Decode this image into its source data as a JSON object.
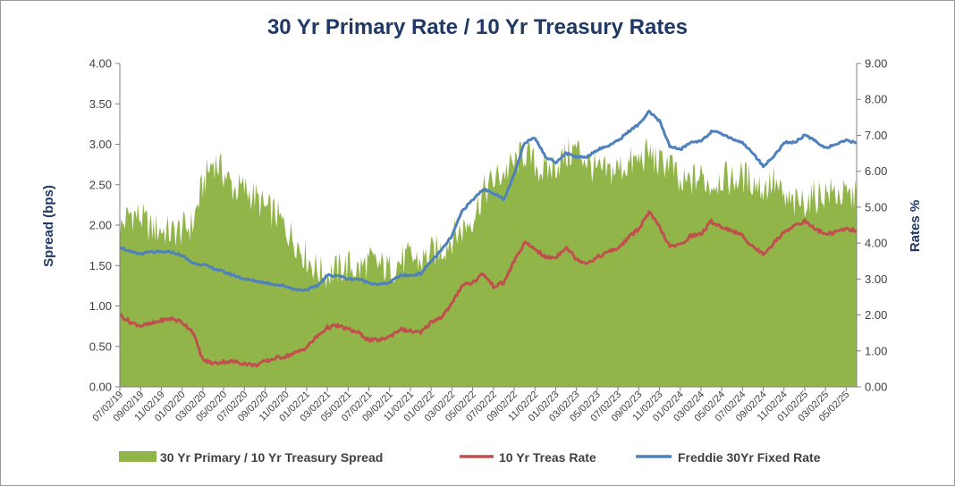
{
  "chart_data": {
    "type": "line",
    "title": "30 Yr Primary Rate / 10 Yr Treasury Rates",
    "ylabel_left": "Spread (bps)",
    "ylabel_right": "Rates %",
    "ylim_left": [
      0,
      4
    ],
    "ylim_right": [
      0,
      9
    ],
    "yticks_left": [
      "0.00",
      "0.50",
      "1.00",
      "1.50",
      "2.00",
      "2.50",
      "3.00",
      "3.50",
      "4.00"
    ],
    "yticks_right": [
      "0.00",
      "1.00",
      "2.00",
      "3.00",
      "4.00",
      "5.00",
      "6.00",
      "7.00",
      "8.00",
      "9.00"
    ],
    "xtick_labels": [
      "07/02/19",
      "09/02/19",
      "11/02/19",
      "01/02/20",
      "03/02/20",
      "05/02/20",
      "07/02/20",
      "09/02/20",
      "11/02/20",
      "01/02/21",
      "03/02/21",
      "05/02/21",
      "07/02/21",
      "09/02/21",
      "11/02/21",
      "01/02/22",
      "03/02/22",
      "05/02/22",
      "07/02/22",
      "09/02/22",
      "11/02/22",
      "01/02/23",
      "03/02/23",
      "05/02/23",
      "07/02/23",
      "09/02/23",
      "11/02/23",
      "01/02/24",
      "03/02/24",
      "05/02/24",
      "07/02/24",
      "09/02/24",
      "11/02/24",
      "01/02/25",
      "03/02/25",
      "05/02/25"
    ],
    "x_months": [
      "2019-07",
      "2019-08",
      "2019-09",
      "2019-10",
      "2019-11",
      "2019-12",
      "2020-01",
      "2020-02",
      "2020-03",
      "2020-04",
      "2020-05",
      "2020-06",
      "2020-07",
      "2020-08",
      "2020-09",
      "2020-10",
      "2020-11",
      "2020-12",
      "2021-01",
      "2021-02",
      "2021-03",
      "2021-04",
      "2021-05",
      "2021-06",
      "2021-07",
      "2021-08",
      "2021-09",
      "2021-10",
      "2021-11",
      "2021-12",
      "2022-01",
      "2022-02",
      "2022-03",
      "2022-04",
      "2022-05",
      "2022-06",
      "2022-07",
      "2022-08",
      "2022-09",
      "2022-10",
      "2022-11",
      "2022-12",
      "2023-01",
      "2023-02",
      "2023-03",
      "2023-04",
      "2023-05",
      "2023-06",
      "2023-07",
      "2023-08",
      "2023-09",
      "2023-10",
      "2023-11",
      "2023-12",
      "2024-01",
      "2024-02",
      "2024-03",
      "2024-04",
      "2024-05",
      "2024-06",
      "2024-07",
      "2024-08",
      "2024-09",
      "2024-10",
      "2024-11",
      "2024-12",
      "2025-01",
      "2025-02",
      "2025-03",
      "2025-04",
      "2025-05",
      "2025-06"
    ],
    "series": [
      {
        "name": "30 Yr Primary / 10 Yr Treasury Spread",
        "axis": "left",
        "color": "#92b54a",
        "type": "area",
        "values": [
          1.95,
          2.15,
          2.1,
          1.95,
          1.95,
          1.9,
          1.95,
          2.0,
          2.5,
          2.8,
          2.65,
          2.45,
          2.45,
          2.35,
          2.2,
          2.15,
          1.95,
          1.8,
          1.6,
          1.45,
          1.4,
          1.45,
          1.5,
          1.45,
          1.55,
          1.5,
          1.45,
          1.55,
          1.6,
          1.55,
          1.65,
          1.7,
          1.85,
          1.95,
          2.1,
          2.4,
          2.55,
          2.65,
          2.75,
          2.9,
          2.75,
          2.65,
          2.75,
          2.85,
          2.95,
          2.8,
          2.65,
          2.65,
          2.7,
          2.75,
          2.8,
          2.9,
          2.75,
          2.8,
          2.45,
          2.55,
          2.6,
          2.5,
          2.6,
          2.55,
          2.6,
          2.55,
          2.45,
          2.55,
          2.3,
          2.25,
          2.3,
          2.35,
          2.4,
          2.4,
          2.35,
          2.35
        ]
      },
      {
        "name": "10 Yr Treas Rate",
        "axis": "right",
        "color": "#c0504d",
        "type": "line",
        "values": [
          2.0,
          1.8,
          1.7,
          1.75,
          1.85,
          1.9,
          1.8,
          1.55,
          0.75,
          0.65,
          0.7,
          0.7,
          0.65,
          0.6,
          0.7,
          0.8,
          0.85,
          0.95,
          1.1,
          1.4,
          1.65,
          1.7,
          1.6,
          1.5,
          1.3,
          1.3,
          1.4,
          1.6,
          1.55,
          1.5,
          1.8,
          1.95,
          2.3,
          2.85,
          2.9,
          3.15,
          2.8,
          2.9,
          3.5,
          4.0,
          3.85,
          3.6,
          3.6,
          3.9,
          3.55,
          3.45,
          3.6,
          3.75,
          3.85,
          4.15,
          4.4,
          4.85,
          4.45,
          3.9,
          3.95,
          4.2,
          4.25,
          4.6,
          4.45,
          4.35,
          4.2,
          3.9,
          3.7,
          4.0,
          4.3,
          4.5,
          4.6,
          4.4,
          4.25,
          4.3,
          4.4,
          4.35
        ]
      },
      {
        "name": "Freddie 30Yr Fixed Rate",
        "axis": "right",
        "color": "#4f81bd",
        "type": "line",
        "values": [
          3.9,
          3.75,
          3.7,
          3.75,
          3.75,
          3.75,
          3.65,
          3.45,
          3.4,
          3.3,
          3.2,
          3.1,
          3.0,
          2.95,
          2.9,
          2.85,
          2.8,
          2.7,
          2.7,
          2.8,
          3.1,
          3.1,
          3.0,
          3.0,
          2.9,
          2.85,
          2.9,
          3.1,
          3.1,
          3.15,
          3.5,
          3.8,
          4.2,
          4.9,
          5.2,
          5.5,
          5.4,
          5.2,
          5.9,
          6.8,
          6.95,
          6.4,
          6.25,
          6.5,
          6.4,
          6.4,
          6.6,
          6.7,
          6.85,
          7.1,
          7.3,
          7.65,
          7.4,
          6.7,
          6.6,
          6.8,
          6.85,
          7.1,
          7.05,
          6.9,
          6.8,
          6.5,
          6.15,
          6.4,
          6.8,
          6.8,
          7.0,
          6.85,
          6.65,
          6.75,
          6.85,
          6.8
        ]
      }
    ],
    "legend_position": "bottom"
  }
}
